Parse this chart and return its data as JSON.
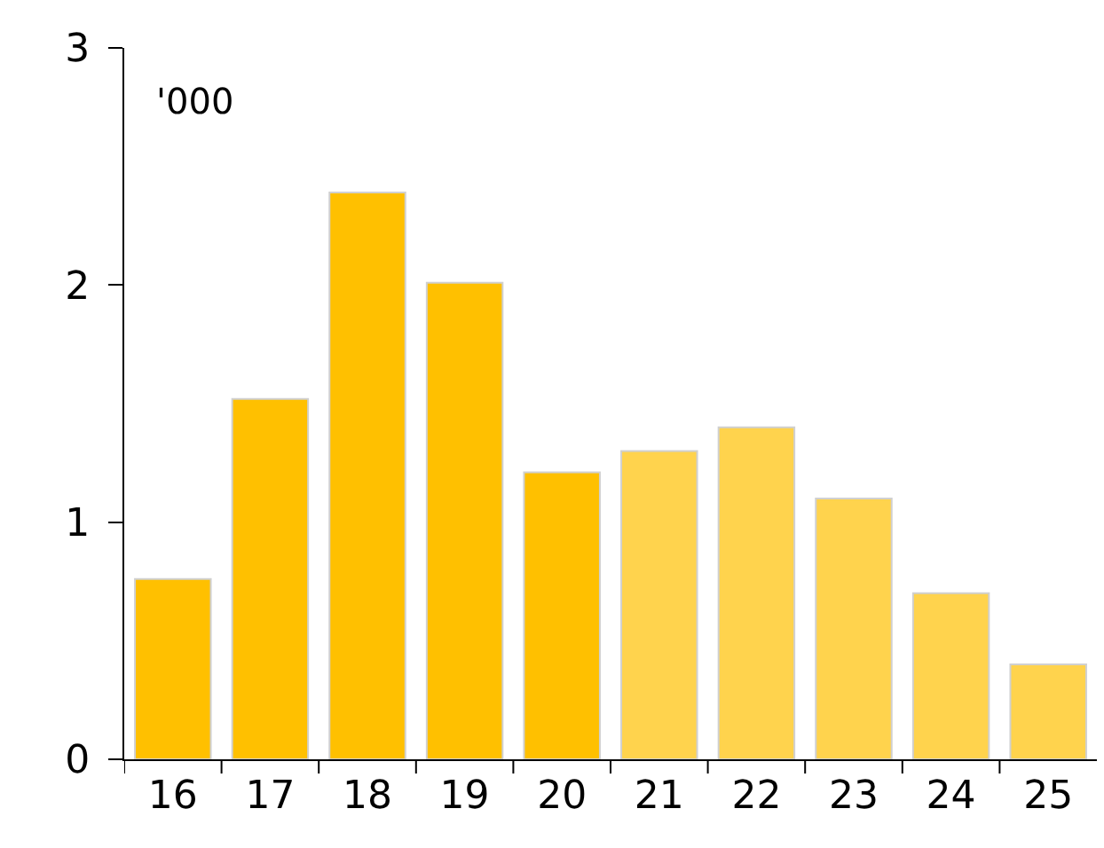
{
  "chart_data": {
    "type": "bar",
    "categories": [
      "16",
      "17",
      "18",
      "19",
      "20",
      "21",
      "22",
      "23",
      "24",
      "25"
    ],
    "values": [
      0.76,
      1.52,
      2.39,
      2.01,
      1.21,
      1.3,
      1.4,
      1.1,
      0.7,
      0.4
    ],
    "colors": [
      "#ffc000",
      "#ffc000",
      "#ffc000",
      "#ffc000",
      "#ffc000",
      "#ffd34d",
      "#ffd34d",
      "#ffd34d",
      "#ffd34d",
      "#ffd34d"
    ],
    "ylim": [
      0,
      3
    ],
    "yticks": [
      0,
      1,
      2,
      3
    ],
    "grid": false,
    "annotations": [
      "'000"
    ]
  }
}
